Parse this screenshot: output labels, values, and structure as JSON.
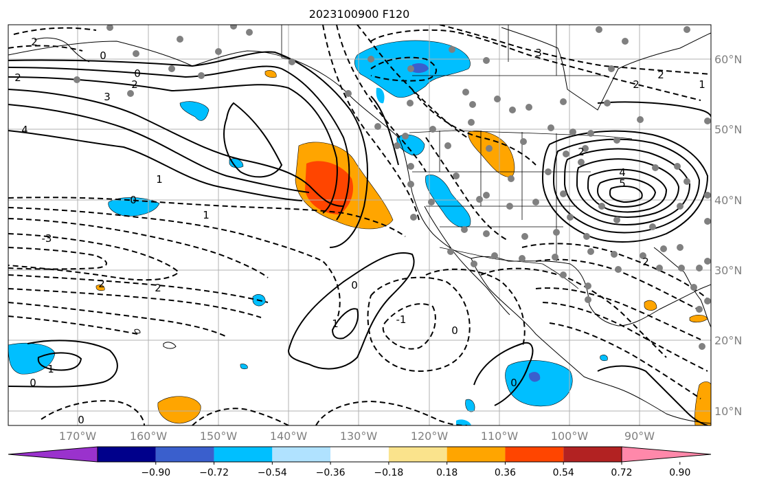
{
  "map": {
    "title": "2023100900 F120",
    "lon_labels": [
      "170°W",
      "160°W",
      "150°W",
      "140°W",
      "130°W",
      "120°W",
      "110°W",
      "100°W",
      "90°W"
    ],
    "lat_labels": [
      "60°N",
      "50°N",
      "40°N",
      "30°N",
      "20°N",
      "10°N"
    ],
    "colorbar": {
      "ticks": [
        "−0.90",
        "−0.72",
        "−0.54",
        "−0.36",
        "−0.18",
        "0.18",
        "0.36",
        "0.54",
        "0.72",
        "0.90"
      ],
      "colors": [
        "#9a32cd",
        "#00008b",
        "#3a5fcd",
        "#00bfff",
        "#b0e2ff",
        "#ffffff",
        "#fae38c",
        "#ffa500",
        "#ff4500",
        "#b22222",
        "#ff88aa"
      ]
    },
    "contour_labels": [
      "2",
      "0",
      "2",
      "2",
      "3",
      "0",
      "4",
      "1",
      "0",
      "1",
      "-3",
      "2",
      "2",
      "0",
      "1",
      "1",
      "0",
      "-1",
      "0",
      "3",
      "2",
      "2",
      "1",
      "2",
      "4",
      "5",
      "2",
      "0",
      "0"
    ]
  }
}
